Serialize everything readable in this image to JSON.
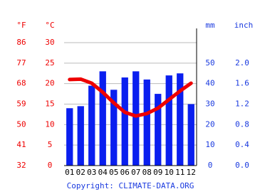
{
  "chart_data": {
    "type": "combo",
    "categories": [
      "01",
      "02",
      "03",
      "04",
      "05",
      "06",
      "07",
      "08",
      "09",
      "10",
      "11",
      "12"
    ],
    "series": [
      {
        "name": "mm",
        "type": "bar",
        "axis": "y2",
        "color": "#0a1fef",
        "values": [
          28,
          29,
          39,
          46,
          37,
          43,
          46,
          42,
          35,
          44,
          45,
          30
        ]
      },
      {
        "name": "°C",
        "type": "line",
        "axis": "y",
        "color": "#ee0000",
        "values": [
          21.0,
          21.1,
          20.1,
          17.9,
          15.3,
          13.0,
          12.1,
          12.7,
          14.0,
          16.1,
          18.2,
          20.1
        ]
      }
    ],
    "y_unit": "°C",
    "ylim": [
      0,
      30
    ],
    "yticks": [
      0,
      5,
      10,
      15,
      20,
      25,
      30
    ],
    "fahrenheit_unit": "°F",
    "fahrenheit_lim": [
      32,
      86
    ],
    "fahrenheit_ticks": [
      32,
      41,
      50,
      59,
      68,
      77,
      86
    ],
    "y2_unit": "mm",
    "y2lim": [
      0,
      60
    ],
    "y2ticks": [
      0,
      10,
      20,
      30,
      40,
      50
    ],
    "inch_unit": "inch",
    "inch_lim": [
      0,
      2.4
    ],
    "inch_ticks": [
      {
        "value": 0,
        "label": "0.0"
      },
      0.4,
      0.8,
      1.2,
      1.6,
      {
        "value": 2,
        "label": "2.0"
      }
    ],
    "grid": true,
    "copyright": "Copyright: CLIMATE-DATA.ORG"
  }
}
